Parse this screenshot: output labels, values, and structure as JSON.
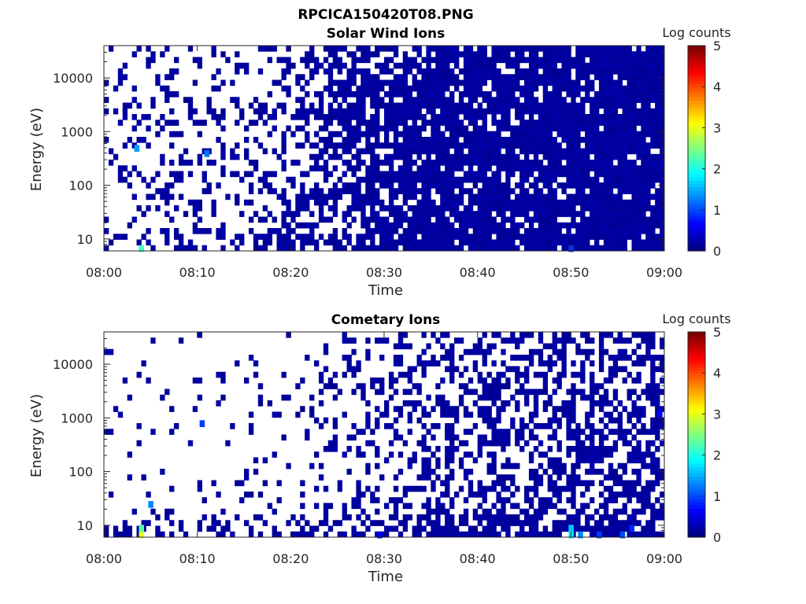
{
  "figure_title": "RPCICA150420T08.PNG",
  "chart_data": [
    {
      "type": "heatmap",
      "title": "Solar Wind Ions",
      "xlabel": "Time",
      "ylabel": "Energy (eV)",
      "x_ticks": [
        "08:00",
        "08:10",
        "08:20",
        "08:30",
        "08:40",
        "08:50",
        "09:00"
      ],
      "xlim": [
        "08:00",
        "09:00"
      ],
      "y_scale": "log",
      "y_ticks": [
        10,
        100,
        1000,
        10000
      ],
      "ylim": [
        6,
        40000
      ],
      "colorbar": {
        "label": "Log counts",
        "ticks": [
          0,
          1,
          2,
          3,
          4,
          5
        ],
        "range": [
          0,
          5
        ],
        "colormap": "jet"
      },
      "density_profile": [
        [
          0,
          0.16
        ],
        [
          15,
          0.25
        ],
        [
          20,
          0.35
        ],
        [
          25,
          0.55
        ],
        [
          28,
          0.72
        ],
        [
          33,
          0.83
        ],
        [
          40,
          0.86
        ],
        [
          60,
          0.92
        ]
      ],
      "hotspots": [
        {
          "time_min": 3.5,
          "energy_ev": 500,
          "log_counts": 1.4
        },
        {
          "time_min": 11.0,
          "energy_ev": 400,
          "log_counts": 1.2
        },
        {
          "time_min": 4.0,
          "energy_ev": 6,
          "log_counts": 2.2
        },
        {
          "time_min": 50.0,
          "energy_ev": 6,
          "log_counts": 0.9
        }
      ],
      "noise_seed": 7
    },
    {
      "type": "heatmap",
      "title": "Cometary Ions",
      "xlabel": "Time",
      "ylabel": "Energy (eV)",
      "x_ticks": [
        "08:00",
        "08:10",
        "08:20",
        "08:30",
        "08:40",
        "08:50",
        "09:00"
      ],
      "xlim": [
        "08:00",
        "09:00"
      ],
      "y_scale": "log",
      "y_ticks": [
        10,
        100,
        1000,
        10000
      ],
      "ylim": [
        6,
        40000
      ],
      "colorbar": {
        "label": "Log counts",
        "ticks": [
          0,
          1,
          2,
          3,
          4,
          5
        ],
        "range": [
          0,
          5
        ],
        "colormap": "jet"
      },
      "density_profile": [
        [
          0,
          0.05
        ],
        [
          20,
          0.1
        ],
        [
          25,
          0.18
        ],
        [
          30,
          0.32
        ],
        [
          40,
          0.48
        ],
        [
          60,
          0.58
        ]
      ],
      "low_energy_boost": 0.3,
      "hotspots": [
        {
          "time_min": 4.0,
          "energy_ev": 6,
          "log_counts": 3.0
        },
        {
          "time_min": 4.0,
          "energy_ev": 9,
          "log_counts": 2.3
        },
        {
          "time_min": 5.0,
          "energy_ev": 25,
          "log_counts": 1.3
        },
        {
          "time_min": 10.5,
          "energy_ev": 800,
          "log_counts": 0.9
        },
        {
          "time_min": 29.5,
          "energy_ev": 6,
          "log_counts": 0.6
        },
        {
          "time_min": 50.0,
          "energy_ev": 9,
          "log_counts": 1.6
        },
        {
          "time_min": 50.0,
          "energy_ev": 6,
          "log_counts": 1.8
        },
        {
          "time_min": 51.0,
          "energy_ev": 6,
          "log_counts": 1.3
        },
        {
          "time_min": 53.0,
          "energy_ev": 6,
          "log_counts": 0.9
        },
        {
          "time_min": 55.5,
          "energy_ev": 6,
          "log_counts": 1.0
        },
        {
          "time_min": 56.5,
          "energy_ev": 9,
          "log_counts": 0.8
        },
        {
          "time_min": 59.5,
          "energy_ev": 1200,
          "log_counts": 0.6
        }
      ],
      "noise_seed": 21
    }
  ]
}
